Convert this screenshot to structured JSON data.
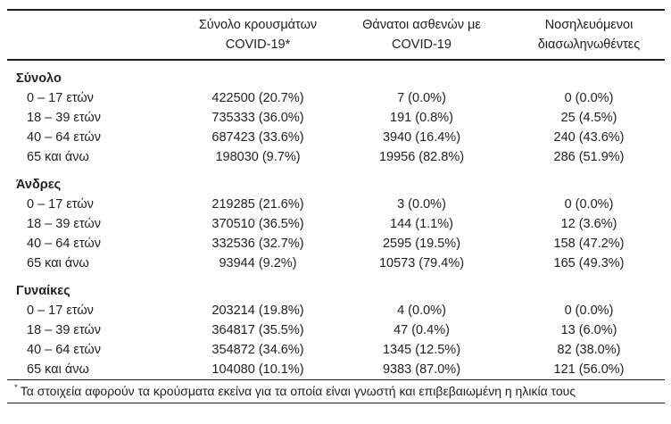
{
  "colors": {
    "background": "#ffffff",
    "text": "#1f1f1f",
    "rule": "#1c1c1c"
  },
  "table": {
    "columns": {
      "cases": {
        "line1": "Σύνολο κρουσμάτων",
        "line2": "COVID-19*"
      },
      "deaths": {
        "line1": "Θάνατοι ασθενών με",
        "line2": "COVID-19"
      },
      "intubated": {
        "line1": "Νοσηλευόμενοι",
        "line2": "διασωληνωθέντες"
      }
    },
    "sections": [
      {
        "label": "Σύνολο",
        "rows": [
          {
            "label": "0 – 17 ετών",
            "cases": "422500 (20.7%)",
            "deaths": "7 (0.0%)",
            "intubated": "0 (0.0%)"
          },
          {
            "label": "18 – 39 ετών",
            "cases": "735333 (36.0%)",
            "deaths": "191 (0.8%)",
            "intubated": "25 (4.5%)"
          },
          {
            "label": "40 – 64 ετών",
            "cases": "687423 (33.6%)",
            "deaths": "3940 (16.4%)",
            "intubated": "240 (43.6%)"
          },
          {
            "label": "65 και άνω",
            "cases": "198030 (9.7%)",
            "deaths": "19956 (82.8%)",
            "intubated": "286 (51.9%)"
          }
        ]
      },
      {
        "label": "Άνδρες",
        "rows": [
          {
            "label": "0 – 17 ετών",
            "cases": "219285 (21.6%)",
            "deaths": "3 (0.0%)",
            "intubated": "0 (0.0%)"
          },
          {
            "label": "18 – 39 ετών",
            "cases": "370510 (36.5%)",
            "deaths": "144 (1.1%)",
            "intubated": "12 (3.6%)"
          },
          {
            "label": "40 – 64 ετών",
            "cases": "332536 (32.7%)",
            "deaths": "2595 (19.5%)",
            "intubated": "158 (47.2%)"
          },
          {
            "label": "65 και άνω",
            "cases": "93944 (9.2%)",
            "deaths": "10573 (79.4%)",
            "intubated": "165 (49.3%)"
          }
        ]
      },
      {
        "label": "Γυναίκες",
        "rows": [
          {
            "label": "0 – 17 ετών",
            "cases": "203214 (19.8%)",
            "deaths": "4 (0.0%)",
            "intubated": "0 (0.0%)"
          },
          {
            "label": "18 – 39 ετών",
            "cases": "364817 (35.5%)",
            "deaths": "47 (0.4%)",
            "intubated": "13 (6.0%)"
          },
          {
            "label": "40 – 64 ετών",
            "cases": "354872 (34.6%)",
            "deaths": "1345 (12.5%)",
            "intubated": "82 (38.0%)"
          },
          {
            "label": "65 και άνω",
            "cases": "104080 (10.1%)",
            "deaths": "9383 (87.0%)",
            "intubated": "121 (56.0%)"
          }
        ]
      }
    ],
    "footnote": {
      "marker": "*",
      "text": "Τα στοιχεία αφορούν τα κρούσματα εκείνα για τα οποία είναι γνωστή και επιβεβαιωμένη η ηλικία τους"
    }
  }
}
